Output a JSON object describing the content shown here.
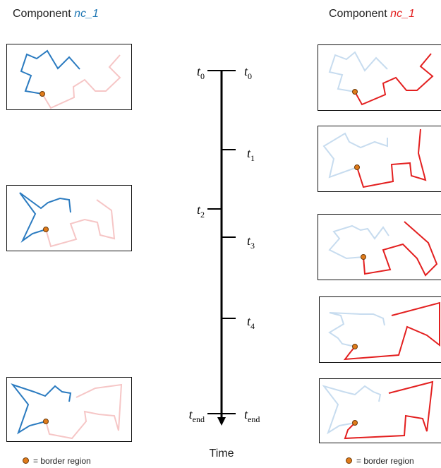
{
  "left_title": {
    "prefix": "Component ",
    "name": "nc_1",
    "name_color": "#1f77b4"
  },
  "right_title": {
    "prefix": "Component ",
    "name": "nc_1",
    "name_color": "#e32020"
  },
  "legend": {
    "label": "= border region",
    "dot_color": "#e07b1a"
  },
  "timeline": {
    "axis_label": "Time",
    "left_ticks": [
      {
        "base": "t",
        "sub": "0"
      },
      {
        "base": "t",
        "sub": "2"
      },
      {
        "base": "t",
        "sub": "end"
      }
    ],
    "right_ticks": [
      {
        "base": "t",
        "sub": "0"
      },
      {
        "base": "t",
        "sub": "1"
      },
      {
        "base": "t",
        "sub": "3"
      },
      {
        "base": "t",
        "sub": "4"
      },
      {
        "base": "t",
        "sub": "end"
      }
    ]
  },
  "colors": {
    "blue": "#2b7bc0",
    "light_blue": "#c7dcef",
    "red": "#e32020",
    "light_red": "#f6c6c6",
    "border_dot": "#e07b1a"
  }
}
